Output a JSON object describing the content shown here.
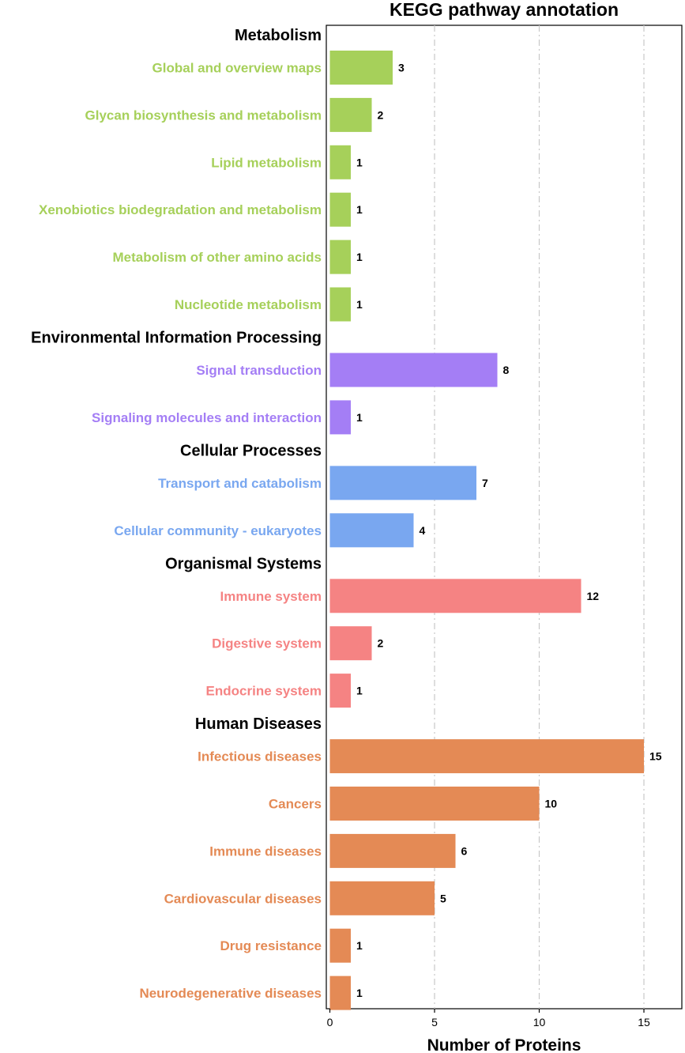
{
  "chart_data": {
    "type": "bar",
    "orientation": "horizontal",
    "title": "KEGG pathway annotation",
    "xlabel": "Number of Proteins",
    "ylabel": "",
    "xlim": [
      0,
      16.7
    ],
    "x_ticks": [
      0,
      5,
      10,
      15
    ],
    "grid": "vertical dashed lines at x = 5 and 10",
    "groups": [
      {
        "name": "Metabolism",
        "color": "#a6d05a",
        "categories": [
          {
            "label": "Global and overview maps",
            "value": 3
          },
          {
            "label": "Glycan biosynthesis and metabolism",
            "value": 2
          },
          {
            "label": "Lipid metabolism",
            "value": 1
          },
          {
            "label": "Xenobiotics biodegradation and metabolism",
            "value": 1
          },
          {
            "label": "Metabolism of other amino acids",
            "value": 1
          },
          {
            "label": "Nucleotide metabolism",
            "value": 1
          }
        ]
      },
      {
        "name": "Environmental Information Processing",
        "color": "#a47ef5",
        "categories": [
          {
            "label": "Signal transduction",
            "value": 8
          },
          {
            "label": "Signaling molecules and interaction",
            "value": 1
          }
        ]
      },
      {
        "name": "Cellular Processes",
        "color": "#79a7f0",
        "categories": [
          {
            "label": "Transport and catabolism",
            "value": 7
          },
          {
            "label": "Cellular community - eukaryotes",
            "value": 4
          }
        ]
      },
      {
        "name": "Organismal Systems",
        "color": "#f58383",
        "categories": [
          {
            "label": "Immune system",
            "value": 12
          },
          {
            "label": "Digestive system",
            "value": 2
          },
          {
            "label": "Endocrine system",
            "value": 1
          }
        ]
      },
      {
        "name": "Human Diseases",
        "color": "#e48a55",
        "categories": [
          {
            "label": "Infectious diseases",
            "value": 15
          },
          {
            "label": "Cancers",
            "value": 10
          },
          {
            "label": "Immune diseases",
            "value": 6
          },
          {
            "label": "Cardiovascular diseases",
            "value": 5
          },
          {
            "label": "Drug resistance",
            "value": 1
          },
          {
            "label": "Neurodegenerative diseases",
            "value": 1
          }
        ]
      }
    ]
  }
}
